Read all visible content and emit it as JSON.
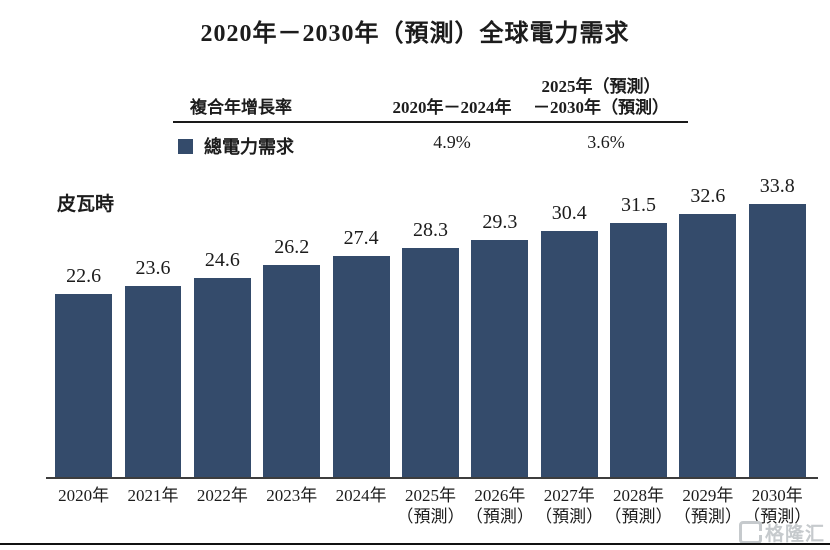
{
  "title": "2020年－2030年（預測）全球電力需求",
  "unit_label": "皮瓦時",
  "table": {
    "col1": "複合年增長率",
    "col2": "2020年－2024年",
    "col3": "2025年（預測）\n－2030年（預測）",
    "series_label": "總電力需求",
    "cagr_2020_2024": "4.9%",
    "cagr_2025_2030": "3.6%"
  },
  "watermark": {
    "text": "格隆汇",
    "logo": "gelonghui-logo"
  },
  "colors": {
    "bar": "#344B6B",
    "text": "#1c1c1c",
    "axis": "#3d3d3d",
    "watermark": "#c6cacd"
  },
  "chart_data": {
    "type": "bar",
    "title": "2020年－2030年（預測）全球電力需求",
    "ylabel": "皮瓦時",
    "series_name": "總電力需求",
    "categories": [
      "2020年",
      "2021年",
      "2022年",
      "2023年",
      "2024年",
      "2025年\n（預測）",
      "2026年\n（預測）",
      "2027年\n（預測）",
      "2028年\n（預測）",
      "2029年\n（預測）",
      "2030年\n（預測）"
    ],
    "values": [
      22.6,
      23.6,
      24.6,
      26.2,
      27.4,
      28.3,
      29.3,
      30.4,
      31.5,
      32.6,
      33.8
    ],
    "ylim": [
      0,
      34
    ],
    "grid": false,
    "legend_position": "top-table",
    "cagr_annotations": {
      "2020-2024": "4.9%",
      "2025-2030": "3.6%"
    }
  }
}
